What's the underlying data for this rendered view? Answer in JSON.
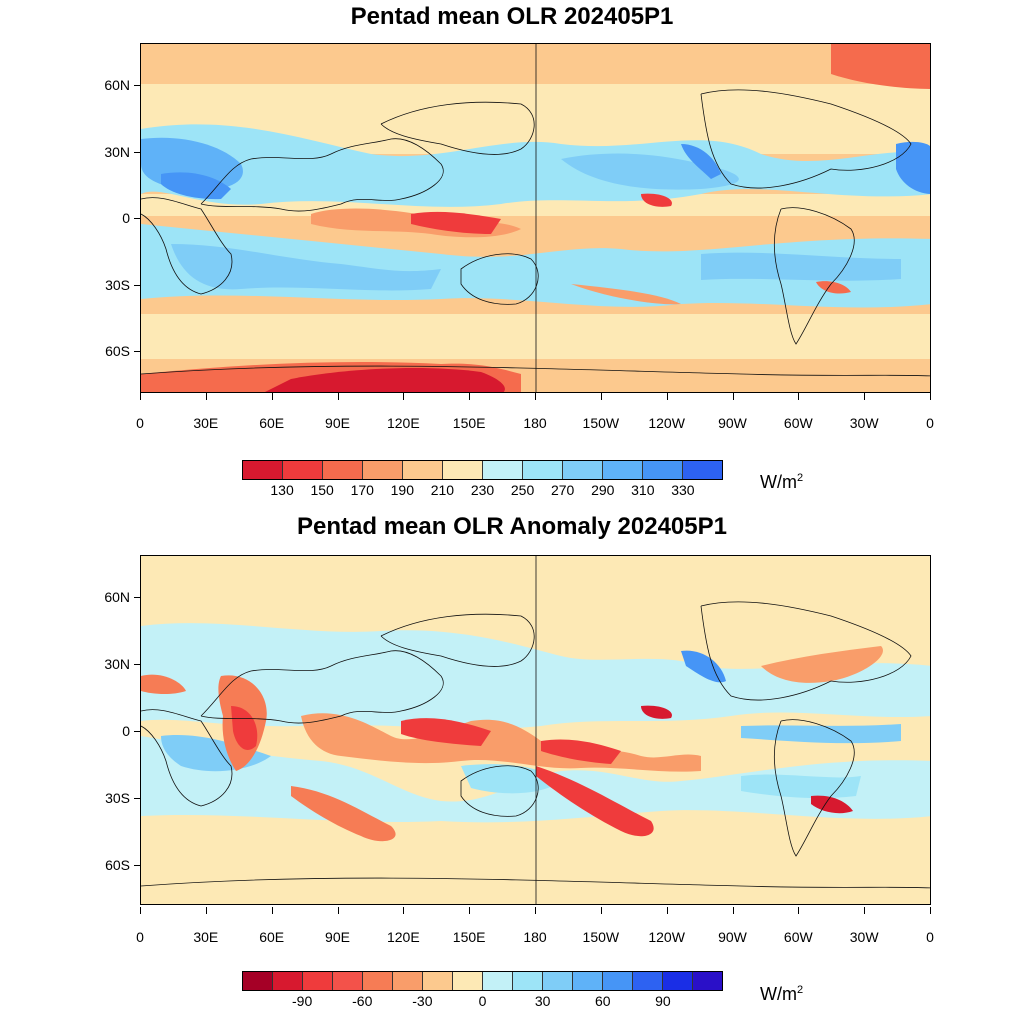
{
  "panels": [
    {
      "title": "Pentad mean OLR 202405P1",
      "unit_base": "W/m",
      "unit_exp": "2",
      "colorbar": {
        "colors": [
          "#d7192f",
          "#ef3b3c",
          "#f56b4d",
          "#f99d6a",
          "#fcc98e",
          "#fde9b5",
          "#c3f1f7",
          "#9de4f7",
          "#7fcdf7",
          "#5fb2f8",
          "#4695f6",
          "#2d62f2"
        ],
        "labels": [
          "130",
          "150",
          "170",
          "190",
          "210",
          "230",
          "250",
          "270",
          "290",
          "310",
          "330"
        ]
      }
    },
    {
      "title": "Pentad mean OLR Anomaly 202405P1",
      "unit_base": "W/m",
      "unit_exp": "2",
      "colorbar": {
        "colors": [
          "#a50026",
          "#d7192f",
          "#ef3b3c",
          "#f3524a",
          "#f67c55",
          "#f99d6a",
          "#fcc98e",
          "#fde9b5",
          "#c3f1f7",
          "#9de4f7",
          "#7fcdf7",
          "#5fb2f8",
          "#4695f6",
          "#2d62f2",
          "#1a2ee6",
          "#2a10c8"
        ],
        "labels": [
          "-90",
          "-60",
          "-30",
          "0",
          "30",
          "60",
          "90"
        ]
      }
    }
  ],
  "lat_labels": [
    "60N",
    "30N",
    "0",
    "30S",
    "60S"
  ],
  "lon_labels": [
    "0",
    "30E",
    "60E",
    "90E",
    "120E",
    "150E",
    "180",
    "150W",
    "120W",
    "90W",
    "60W",
    "30W",
    "0"
  ]
}
